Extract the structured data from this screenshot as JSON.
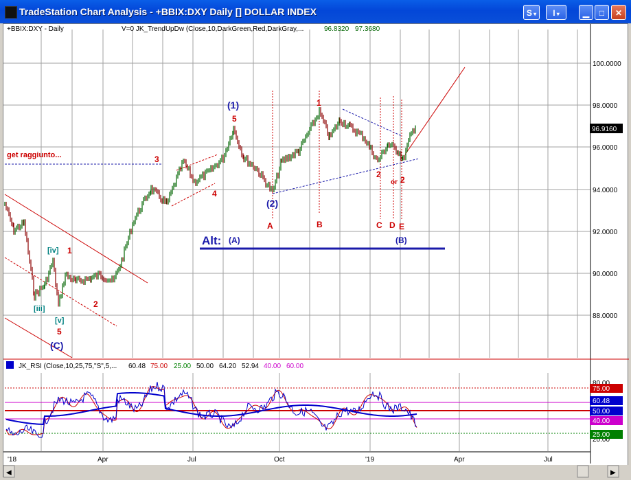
{
  "window": {
    "title": "TradeStation Chart Analysis - +BBIX:DXY Daily [] DOLLAR INDEX",
    "s_button": "S",
    "i_button": "I"
  },
  "price_pane": {
    "symbol_label": "+BBIX:DXY - Daily",
    "indicator_label": "V=0  JK_TrendUpDw (Close,10,DarkGreen,Red,DarkGray,...",
    "indicator_value_1": "96.8320",
    "indicator_value_2": "97.3680",
    "last_price": "96.9160",
    "y_ticks": [
      "100.0000",
      "98.0000",
      "96.0000",
      "94.0000",
      "92.0000",
      "90.0000",
      "88.0000"
    ]
  },
  "rsi_pane": {
    "label": "JK_RSI (Close,10,25,75,\"S\",5,...",
    "values": [
      "60.48",
      "75.00",
      "25.00",
      "50.00",
      "64.20",
      "52.94",
      "40.00",
      "60.00"
    ],
    "y_tick_top": "80.00",
    "y_tick_bottom": "20.00",
    "badges": [
      "75.00",
      "60.48",
      "50.00",
      "40.00",
      "25.00"
    ]
  },
  "x_axis": {
    "ticks": [
      "'18",
      "Apr",
      "Jul",
      "Oct",
      "'19",
      "Apr",
      "Jul"
    ]
  },
  "annotations": {
    "get_raggiunto": "get raggiunto...",
    "wave_1_paren": "(1)",
    "wave_2_paren": "(2)",
    "wave_c_paren": "(C)",
    "wave_b_paren": "(B)",
    "alt_label": "Alt:",
    "alt_a": "(A)",
    "wave_iv": "[iv]",
    "wave_iii": "[iii]",
    "wave_v": "[v]",
    "num_1a": "1",
    "num_2a": "2",
    "num_3": "3",
    "num_4": "4",
    "num_5a": "5",
    "num_5b": "5",
    "num_1b": "1",
    "num_2b": "2",
    "num_2c": "2",
    "or_label": "or",
    "letter_a": "A",
    "letter_b": "B",
    "letter_c": "C",
    "letter_d": "D",
    "letter_e": "E"
  },
  "colors": {
    "up_bar": "#006400",
    "down_bar": "#8b0000",
    "annotation_red": "#cc0000",
    "annotation_blue": "#1a1aaa",
    "rsi_blue": "#0000cc",
    "rsi_red": "#cc0000"
  }
}
